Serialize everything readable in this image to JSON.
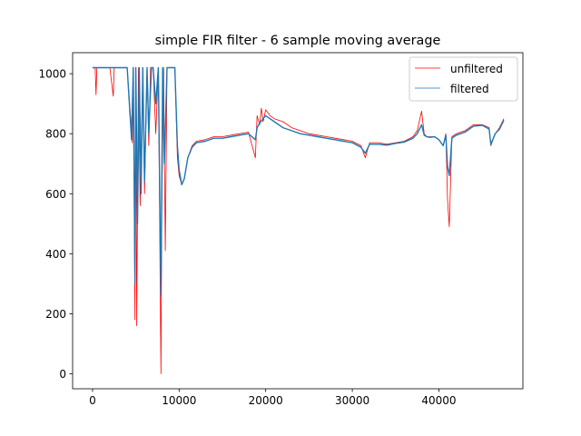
{
  "chart_data": {
    "type": "line",
    "title": "simple FIR filter - 6 sample moving average",
    "xlabel": "",
    "ylabel": "",
    "xlim": [
      -2300,
      49700
    ],
    "ylim": [
      -50,
      1070
    ],
    "xticks": [
      0,
      10000,
      20000,
      30000,
      40000
    ],
    "yticks": [
      0,
      200,
      400,
      600,
      800,
      1000
    ],
    "grid": false,
    "legend_position": "top-right",
    "series": [
      {
        "name": "unfiltered",
        "color": "#ff0000",
        "x": [
          0,
          300,
          400,
          500,
          2000,
          2400,
          2500,
          4000,
          4600,
          4700,
          4900,
          5000,
          5100,
          5300,
          5500,
          5800,
          6000,
          6300,
          6500,
          6700,
          7000,
          7300,
          7600,
          7900,
          8000,
          8200,
          8400,
          8600,
          9000,
          9500,
          9800,
          10000,
          10300,
          10600,
          11000,
          11500,
          12000,
          13000,
          14000,
          15000,
          16000,
          17000,
          18000,
          18800,
          19000,
          19300,
          19500,
          19700,
          20000,
          20500,
          21000,
          22000,
          23000,
          24000,
          25000,
          26000,
          27000,
          28000,
          29000,
          30000,
          31000,
          31500,
          32000,
          33000,
          34000,
          35000,
          36000,
          37000,
          37500,
          38000,
          38300,
          38600,
          39000,
          39500,
          40000,
          40500,
          40800,
          41000,
          41200,
          41500,
          42000,
          43000,
          44000,
          45000,
          45800,
          46000,
          46500,
          47000,
          47500
        ],
        "values": [
          1020,
          1020,
          930,
          1020,
          1020,
          925,
          1020,
          1020,
          770,
          1020,
          180,
          1020,
          160,
          1020,
          560,
          1020,
          600,
          1020,
          760,
          1020,
          1020,
          800,
          1020,
          0,
          540,
          1020,
          410,
          1020,
          1020,
          1020,
          720,
          660,
          630,
          650,
          720,
          760,
          775,
          780,
          790,
          790,
          795,
          800,
          805,
          720,
          860,
          830,
          885,
          840,
          880,
          860,
          850,
          840,
          820,
          810,
          800,
          795,
          790,
          785,
          780,
          775,
          760,
          720,
          770,
          770,
          765,
          770,
          775,
          790,
          810,
          875,
          800,
          790,
          790,
          790,
          780,
          760,
          800,
          580,
          490,
          790,
          800,
          810,
          830,
          830,
          820,
          760,
          800,
          820,
          850
        ]
      },
      {
        "name": "filtered",
        "color": "#1f77b4",
        "x": [
          0,
          500,
          2000,
          4000,
          4500,
          4700,
          4900,
          5000,
          5200,
          5400,
          5600,
          5800,
          6000,
          6300,
          6500,
          6800,
          7000,
          7300,
          7600,
          7900,
          8100,
          8300,
          8600,
          9000,
          9500,
          9800,
          10000,
          10300,
          10600,
          11000,
          11500,
          12000,
          13000,
          14000,
          15000,
          16000,
          17000,
          18000,
          18800,
          19000,
          19300,
          19700,
          20000,
          20500,
          21000,
          22000,
          23000,
          24000,
          25000,
          26000,
          27000,
          28000,
          29000,
          30000,
          31000,
          31500,
          32000,
          33000,
          34000,
          35000,
          36000,
          37000,
          37500,
          38000,
          38300,
          38600,
          39000,
          39500,
          40000,
          40500,
          40800,
          41000,
          41200,
          41500,
          42000,
          43000,
          44000,
          45000,
          45800,
          46000,
          46500,
          47000,
          47500
        ],
        "values": [
          1020,
          1020,
          1020,
          1020,
          780,
          1020,
          300,
          1020,
          500,
          1020,
          600,
          1020,
          640,
          1020,
          800,
          1020,
          1020,
          900,
          1020,
          260,
          1020,
          700,
          1020,
          1020,
          1020,
          760,
          680,
          630,
          650,
          720,
          755,
          770,
          775,
          785,
          785,
          790,
          795,
          800,
          780,
          820,
          835,
          850,
          860,
          850,
          840,
          820,
          810,
          800,
          795,
          790,
          785,
          780,
          775,
          770,
          755,
          735,
          765,
          765,
          762,
          768,
          772,
          785,
          800,
          830,
          795,
          790,
          788,
          790,
          780,
          760,
          795,
          690,
          660,
          785,
          795,
          805,
          825,
          828,
          815,
          765,
          800,
          815,
          845
        ]
      }
    ]
  }
}
